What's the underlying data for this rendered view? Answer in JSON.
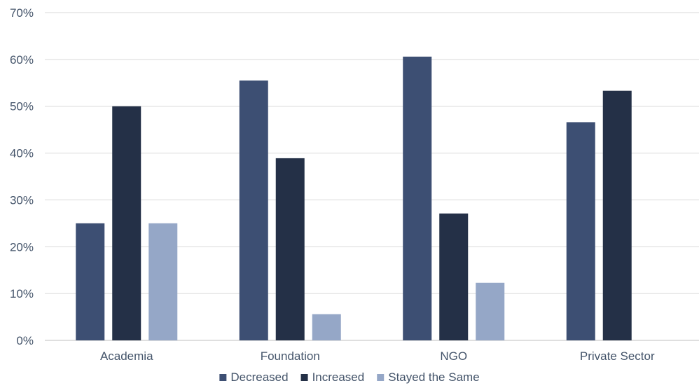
{
  "chart_data": {
    "type": "bar",
    "categories": [
      "Academia",
      "Foundation",
      "NGO",
      "Private Sector"
    ],
    "series": [
      {
        "name": "Decreased",
        "values": [
          25.0,
          55.5,
          60.6,
          46.6
        ],
        "color": "#3d4f73"
      },
      {
        "name": "Increased",
        "values": [
          50.0,
          38.9,
          27.1,
          53.3
        ],
        "color": "#243047"
      },
      {
        "name": "Stayed the Same",
        "values": [
          25.0,
          5.6,
          12.3,
          null
        ],
        "color": "#95a7c7"
      }
    ],
    "y_ticks": [
      "0%",
      "10%",
      "20%",
      "30%",
      "40%",
      "50%",
      "60%",
      "70%"
    ],
    "ylim": [
      0,
      70
    ],
    "grid": true,
    "legend_position": "bottom"
  }
}
